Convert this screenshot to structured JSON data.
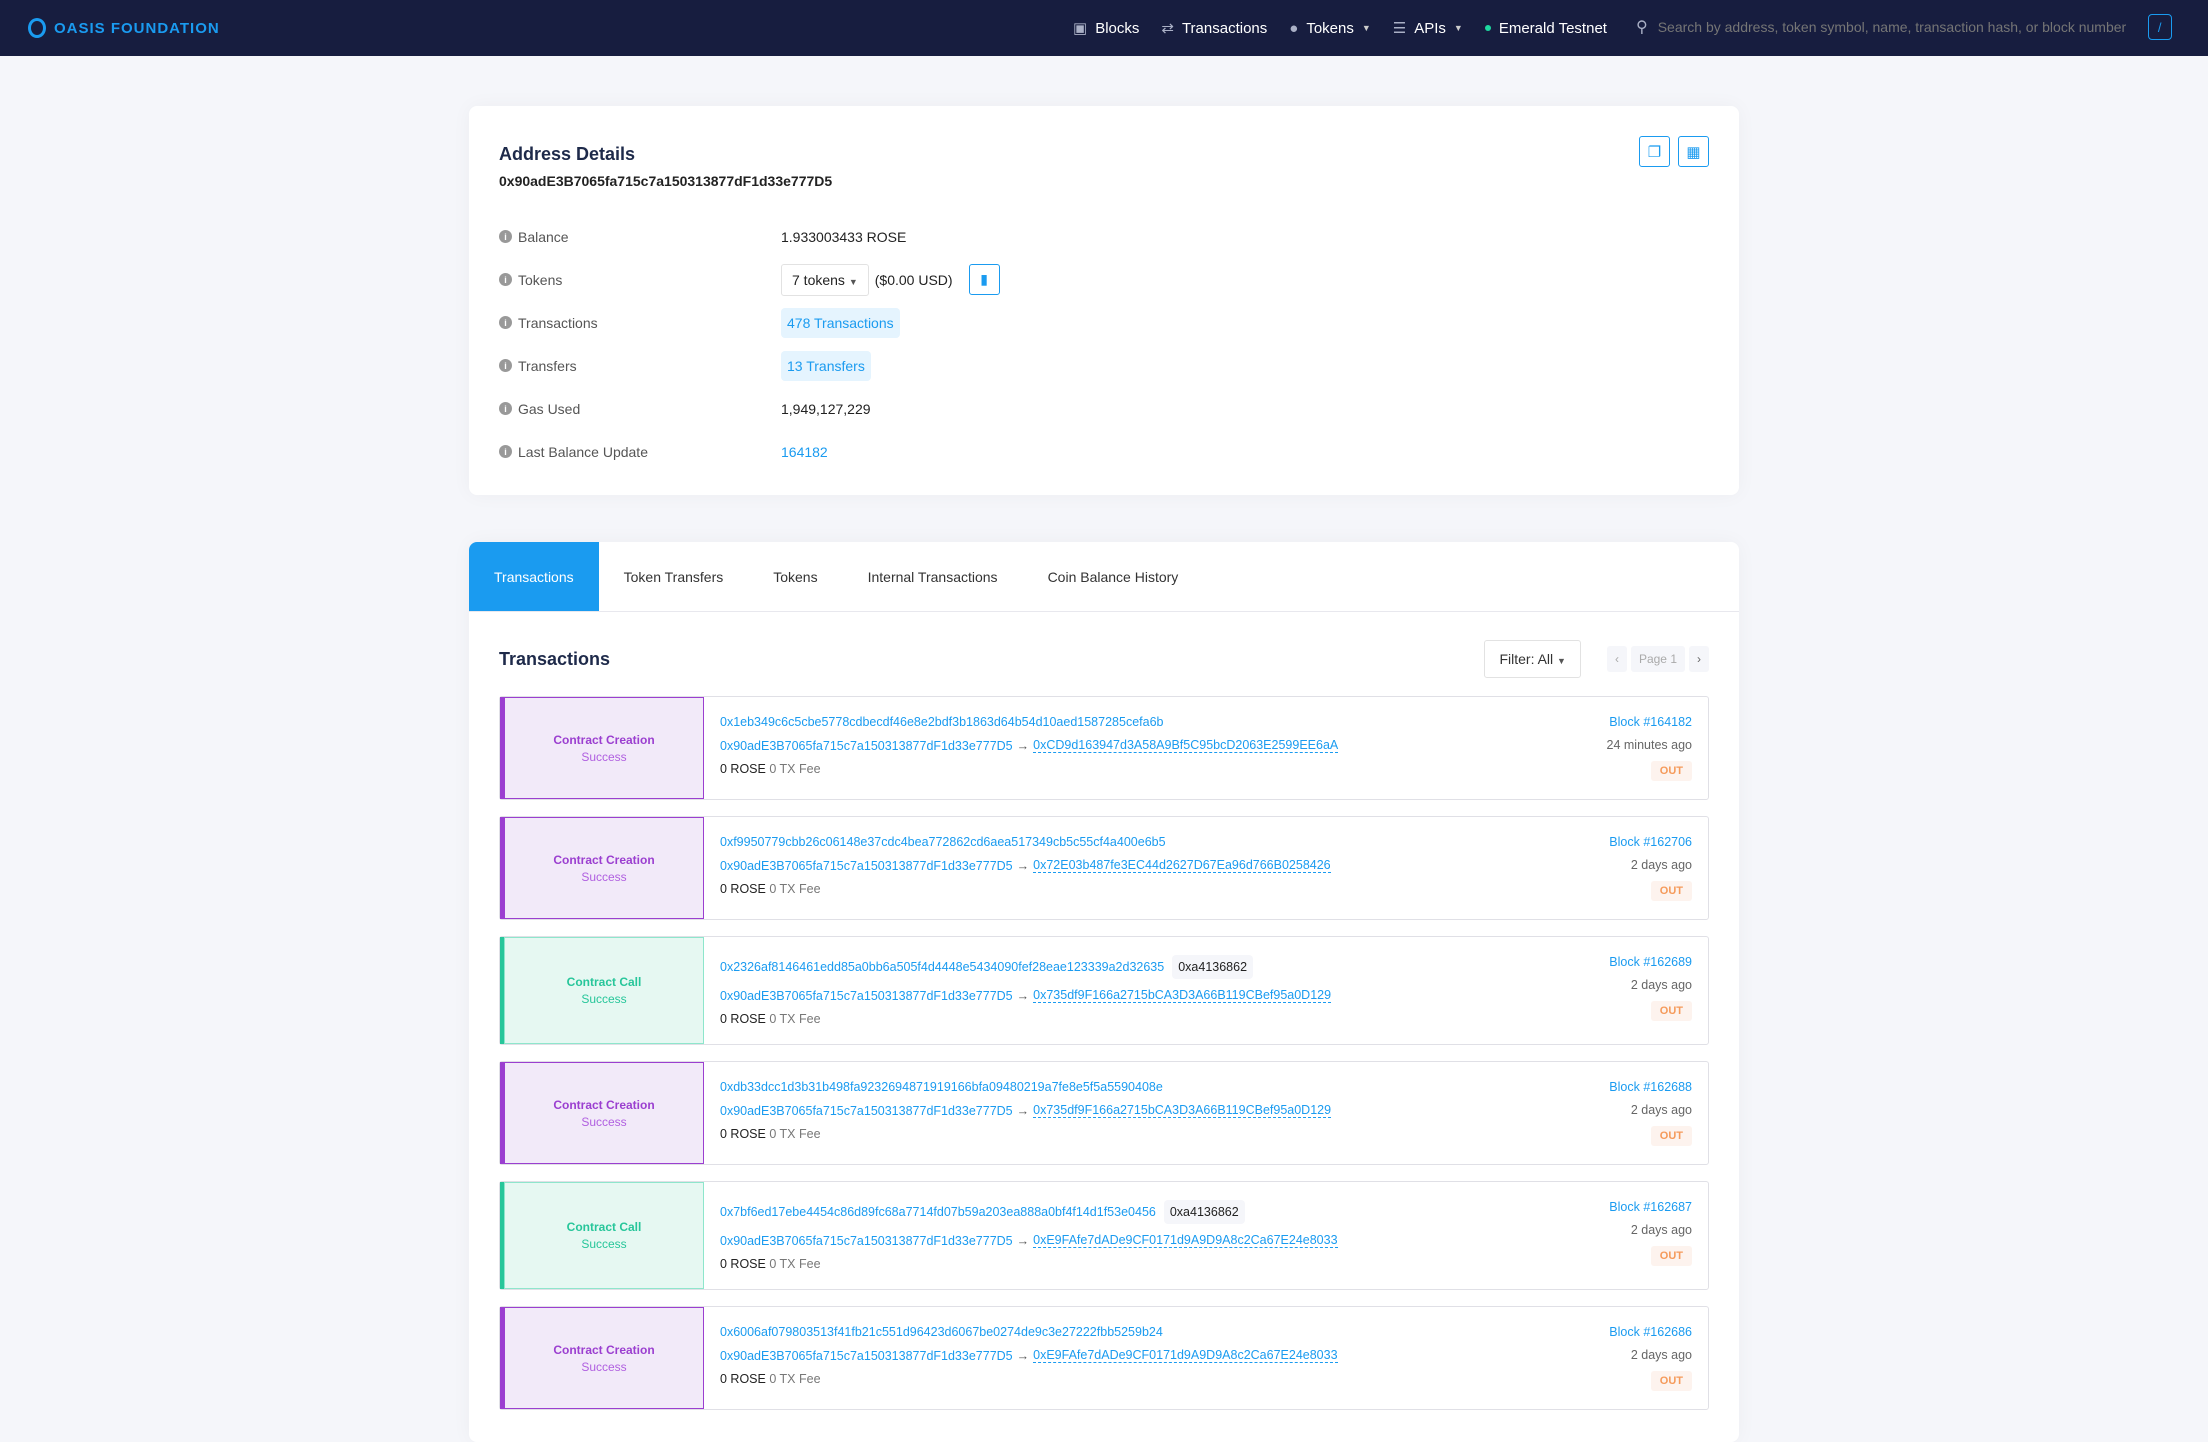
{
  "header": {
    "logo": "OASIS FOUNDATION",
    "nav": [
      {
        "label": "Blocks",
        "icon": "cube-icon"
      },
      {
        "label": "Transactions",
        "icon": "transactions-icon"
      },
      {
        "label": "Tokens",
        "icon": "coins-icon",
        "dropdown": true
      },
      {
        "label": "APIs",
        "icon": "list-icon",
        "dropdown": true
      }
    ],
    "network": "Emerald Testnet",
    "search_placeholder": "Search by address, token symbol, name, transaction hash, or block number",
    "search_shortcut": "/"
  },
  "details": {
    "title": "Address Details",
    "address": "0x90adE3B7065fa715c7a150313877dF1d33e777D5",
    "balance_label": "Balance",
    "balance": "1.933003433 ROSE",
    "tokens_label": "Tokens",
    "tokens_select": "7 tokens",
    "tokens_usd": "($0.00 USD)",
    "transactions_label": "Transactions",
    "transactions": "478 Transactions",
    "transfers_label": "Transfers",
    "transfers": "13 Transfers",
    "gas_label": "Gas Used",
    "gas": "1,949,127,229",
    "last_update_label": "Last Balance Update",
    "last_update": "164182"
  },
  "tabs": [
    "Transactions",
    "Token Transfers",
    "Tokens",
    "Internal Transactions",
    "Coin Balance History"
  ],
  "tx_section": {
    "title": "Transactions",
    "filter": "Filter: All",
    "page": "Page 1"
  },
  "transactions": [
    {
      "type": "Contract Creation",
      "status": "Success",
      "hash": "0x1eb349c6c5cbe5778cdbecdf46e8e2bdf3b1863d64b54d10aed1587285cefa6b",
      "method": "",
      "from": "0x90adE3B7065fa715c7a150313877dF1d33e777D5",
      "to": "0xCD9d163947d3A58A9Bf5C95bcD2063E2599EE6aA",
      "value": "0 ROSE",
      "fee": "0 TX Fee",
      "block": "Block #164182",
      "time": "24 minutes ago",
      "dir": "OUT"
    },
    {
      "type": "Contract Creation",
      "status": "Success",
      "hash": "0xf9950779cbb26c06148e37cdc4bea772862cd6aea517349cb5c55cf4a400e6b5",
      "method": "",
      "from": "0x90adE3B7065fa715c7a150313877dF1d33e777D5",
      "to": "0x72E03b487fe3EC44d2627D67Ea96d766B0258426",
      "value": "0 ROSE",
      "fee": "0 TX Fee",
      "block": "Block #162706",
      "time": "2 days ago",
      "dir": "OUT"
    },
    {
      "type": "Contract Call",
      "status": "Success",
      "hash": "0x2326af8146461edd85a0bb6a505f4d4448e5434090fef28eae123339a2d32635",
      "method": "0xa4136862",
      "from": "0x90adE3B7065fa715c7a150313877dF1d33e777D5",
      "to": "0x735df9F166a2715bCA3D3A66B119CBef95a0D129",
      "value": "0 ROSE",
      "fee": "0 TX Fee",
      "block": "Block #162689",
      "time": "2 days ago",
      "dir": "OUT"
    },
    {
      "type": "Contract Creation",
      "status": "Success",
      "hash": "0xdb33dcc1d3b31b498fa9232694871919166bfa09480219a7fe8e5f5a5590408e",
      "method": "",
      "from": "0x90adE3B7065fa715c7a150313877dF1d33e777D5",
      "to": "0x735df9F166a2715bCA3D3A66B119CBef95a0D129",
      "value": "0 ROSE",
      "fee": "0 TX Fee",
      "block": "Block #162688",
      "time": "2 days ago",
      "dir": "OUT"
    },
    {
      "type": "Contract Call",
      "status": "Success",
      "hash": "0x7bf6ed17ebe4454c86d89fc68a7714fd07b59a203ea888a0bf4f14d1f53e0456",
      "method": "0xa4136862",
      "from": "0x90adE3B7065fa715c7a150313877dF1d33e777D5",
      "to": "0xE9FAfe7dADe9CF0171d9A9D9A8c2Ca67E24e8033",
      "value": "0 ROSE",
      "fee": "0 TX Fee",
      "block": "Block #162687",
      "time": "2 days ago",
      "dir": "OUT"
    },
    {
      "type": "Contract Creation",
      "status": "Success",
      "hash": "0x6006af079803513f41fb21c551d96423d6067be0274de9c3e27222fbb5259b24",
      "method": "",
      "from": "0x90adE3B7065fa715c7a150313877dF1d33e777D5",
      "to": "0xE9FAfe7dADe9CF0171d9A9D9A8c2Ca67E24e8033",
      "value": "0 ROSE",
      "fee": "0 TX Fee",
      "block": "Block #162686",
      "time": "2 days ago",
      "dir": "OUT"
    }
  ],
  "colors": {
    "header_bg": "#171d3f",
    "accent": "#1a9bf0",
    "contract_creation": "#9b3fd0",
    "contract_call": "#27c69a",
    "out": "#f59a5a"
  }
}
